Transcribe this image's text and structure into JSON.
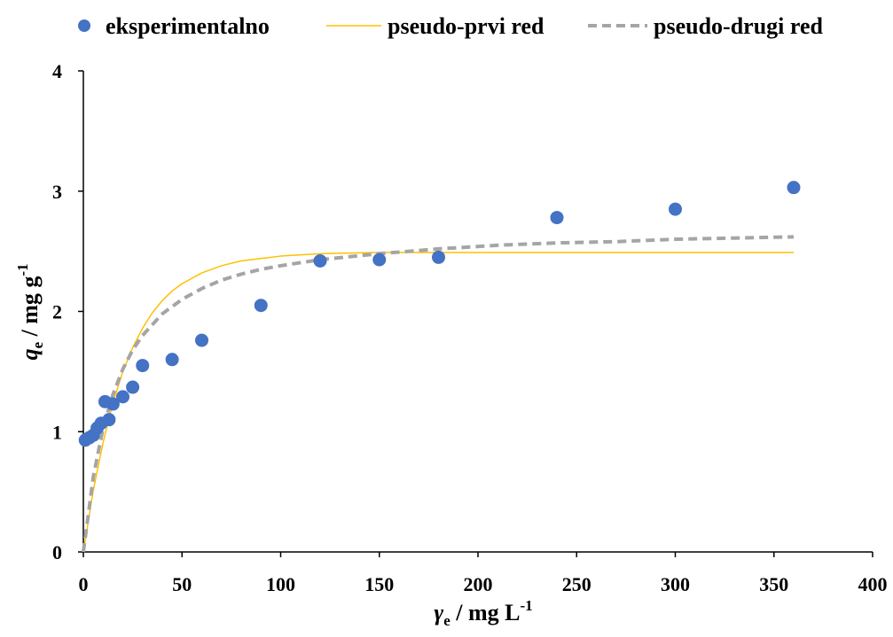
{
  "chart_data": {
    "type": "scatter",
    "xlabel": {
      "main": "γ",
      "sub": "e",
      "rest": " / mg L",
      "sup": "-1"
    },
    "ylabel": {
      "main": "q",
      "sub": "e",
      "rest": " / mg g",
      "sup": "-1"
    },
    "xlim": [
      0,
      400
    ],
    "ylim": [
      0,
      4
    ],
    "xticks": [
      0,
      50,
      100,
      150,
      200,
      250,
      300,
      350,
      400
    ],
    "yticks": [
      0,
      1,
      2,
      3,
      4
    ],
    "grid": false,
    "legend_position": "top",
    "series": [
      {
        "name": "eksperimentalno",
        "kind": "points",
        "color": "#4472C4",
        "x": [
          1,
          3,
          5,
          7,
          9,
          11,
          13,
          15,
          20,
          25,
          30,
          45,
          60,
          90,
          120,
          150,
          180,
          240,
          300,
          360
        ],
        "y": [
          0.93,
          0.95,
          0.97,
          1.03,
          1.07,
          1.25,
          1.1,
          1.23,
          1.29,
          1.37,
          1.55,
          1.6,
          1.76,
          2.05,
          2.42,
          2.43,
          2.45,
          2.78,
          2.85,
          3.03
        ]
      },
      {
        "name": "pseudo-prvi red",
        "kind": "line",
        "style": "solid",
        "color": "#FFC000",
        "x": [
          0,
          5,
          10,
          15,
          20,
          25,
          30,
          35,
          40,
          45,
          50,
          60,
          70,
          80,
          90,
          100,
          120,
          150,
          180,
          240,
          300,
          360
        ],
        "y": [
          0.0,
          0.51,
          0.91,
          1.24,
          1.5,
          1.7,
          1.86,
          1.99,
          2.09,
          2.17,
          2.23,
          2.32,
          2.38,
          2.42,
          2.44,
          2.46,
          2.48,
          2.49,
          2.49,
          2.49,
          2.49,
          2.49
        ]
      },
      {
        "name": "pseudo-drugi red",
        "kind": "line",
        "style": "dashed",
        "color": "#A5A5A5",
        "x": [
          0,
          5,
          10,
          15,
          20,
          25,
          30,
          40,
          50,
          60,
          70,
          80,
          90,
          100,
          120,
          150,
          180,
          210,
          240,
          270,
          300,
          330,
          360
        ],
        "y": [
          0.0,
          0.62,
          1.03,
          1.31,
          1.52,
          1.68,
          1.8,
          1.98,
          2.1,
          2.19,
          2.26,
          2.31,
          2.35,
          2.38,
          2.43,
          2.48,
          2.52,
          2.55,
          2.57,
          2.58,
          2.6,
          2.61,
          2.62
        ]
      }
    ]
  }
}
